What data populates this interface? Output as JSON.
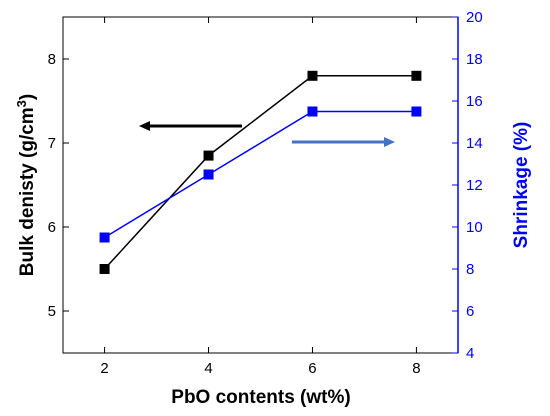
{
  "chart_data": {
    "type": "line",
    "x": [
      2,
      4,
      6,
      8
    ],
    "xlim": [
      1.2,
      8.8
    ],
    "xticks": [
      2,
      4,
      6,
      8
    ],
    "xlabel": "PbO contents (wt%)",
    "y_left": {
      "label_main": "Bulk denisty (g/cm",
      "label_sup": "3",
      "label_close": ")",
      "lim": [
        4.5,
        8.5
      ],
      "ticks": [
        5,
        6,
        7,
        8
      ],
      "color": "#000000"
    },
    "y_right": {
      "label": "Shrinkage (%)",
      "lim": [
        4,
        20
      ],
      "ticks": [
        4,
        6,
        8,
        10,
        12,
        14,
        16,
        18,
        20
      ],
      "color": "#0000ff"
    },
    "series": [
      {
        "axis": "left",
        "color": "#000000",
        "values": [
          5.5,
          6.85,
          7.8,
          7.8
        ]
      },
      {
        "axis": "right",
        "color": "#0000ff",
        "values": [
          9.5,
          12.5,
          15.5,
          15.5
        ]
      }
    ],
    "annotations": [
      {
        "type": "arrow",
        "direction": "left",
        "color": "#000000",
        "series_ref": "left"
      },
      {
        "type": "arrow",
        "direction": "right",
        "color": "#4472c4",
        "series_ref": "right"
      }
    ],
    "grid": false
  }
}
